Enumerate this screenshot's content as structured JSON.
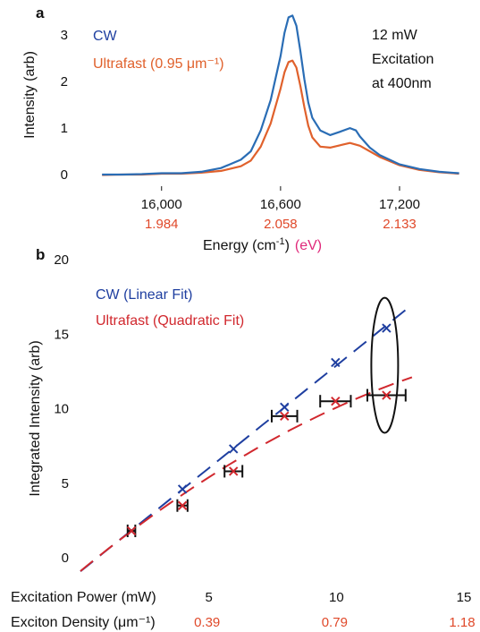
{
  "colors": {
    "blue": "#2a6db5",
    "blue_dark": "#1f3fa0",
    "orange": "#e0612c",
    "red": "#d1282e",
    "ev_label": "#e0287a",
    "black": "#111111"
  },
  "chart_data": [
    {
      "type": "line",
      "panel_label": "a",
      "ylabel": "Intensity (arb)",
      "xlabel_main": "Energy (cm",
      "xlabel_sup": "-1",
      "xlabel_close": ")",
      "xlabel_ev": "(eV)",
      "xlim": [
        15600,
        17520
      ],
      "ylim": [
        -0.25,
        3.6
      ],
      "yticks": [
        0,
        1,
        2,
        3
      ],
      "xticks": [
        16000,
        16600,
        17200
      ],
      "xtick_labels": [
        "16,000",
        "16,600",
        "17,200"
      ],
      "ev_tick_labels": [
        "1.984",
        "2.058",
        "2.133"
      ],
      "annotation": [
        "12 mW",
        "Excitation",
        "at 400nm"
      ],
      "series": [
        {
          "name": "CW",
          "color": "#2a6db5",
          "x": [
            15700,
            15800,
            15900,
            16000,
            16100,
            16200,
            16300,
            16400,
            16450,
            16500,
            16550,
            16600,
            16620,
            16640,
            16660,
            16680,
            16700,
            16720,
            16740,
            16760,
            16800,
            16850,
            16900,
            16950,
            16980,
            17000,
            17050,
            17100,
            17200,
            17300,
            17400,
            17500
          ],
          "y": [
            0.0,
            0.0,
            0.01,
            0.03,
            0.03,
            0.06,
            0.14,
            0.32,
            0.5,
            0.95,
            1.6,
            2.55,
            3.05,
            3.38,
            3.42,
            3.2,
            2.65,
            2.05,
            1.55,
            1.22,
            0.95,
            0.85,
            0.92,
            1.0,
            0.95,
            0.82,
            0.58,
            0.42,
            0.22,
            0.12,
            0.06,
            0.03
          ]
        },
        {
          "name": "Ultrafast (0.95 μm⁻¹)",
          "color": "#e0612c",
          "x": [
            15700,
            15800,
            15900,
            16000,
            16100,
            16200,
            16300,
            16400,
            16450,
            16500,
            16550,
            16600,
            16620,
            16640,
            16660,
            16680,
            16700,
            16720,
            16740,
            16760,
            16800,
            16850,
            16900,
            16950,
            17000,
            17050,
            17100,
            17200,
            17300,
            17400,
            17500
          ],
          "y": [
            -0.01,
            0.0,
            0.0,
            0.02,
            0.02,
            0.04,
            0.08,
            0.18,
            0.3,
            0.6,
            1.1,
            1.85,
            2.2,
            2.42,
            2.45,
            2.3,
            1.9,
            1.45,
            1.05,
            0.8,
            0.6,
            0.58,
            0.63,
            0.68,
            0.62,
            0.5,
            0.38,
            0.2,
            0.1,
            0.05,
            0.02
          ]
        }
      ]
    },
    {
      "type": "scatter",
      "panel_label": "b",
      "ylabel": "Integrated Intensity (arb)",
      "xlim": [
        0,
        15
      ],
      "ylim": [
        0,
        20
      ],
      "yticks": [
        0,
        5,
        10,
        15,
        20
      ],
      "xticks": [
        5,
        10,
        15
      ],
      "xlabel": "Excitation Power (mW)",
      "density_label": "Exciton  Density (μm⁻¹)",
      "density_tick_labels": [
        "0.39",
        "0.79",
        "1.18"
      ],
      "series": [
        {
          "name": "CW (Linear Fit)",
          "color": "#1f3fa0",
          "x": [
            2,
            4,
            6,
            8,
            10,
            12
          ],
          "y": [
            2.7,
            5.5,
            8.2,
            11.0,
            14.0,
            16.3
          ],
          "fit": "linear",
          "fit_range": [
            0,
            13
          ]
        },
        {
          "name": "Ultrafast (Quadratic Fit)",
          "color": "#d1282e",
          "x": [
            2,
            4,
            6,
            8,
            10,
            12
          ],
          "y": [
            2.7,
            4.4,
            6.7,
            10.4,
            11.4,
            11.8
          ],
          "x_error": [
            0.15,
            0.2,
            0.35,
            0.5,
            0.6,
            0.75
          ],
          "fit": "quadratic",
          "fit_range": [
            0,
            13
          ]
        }
      ],
      "ellipse_around_x": 12
    }
  ]
}
